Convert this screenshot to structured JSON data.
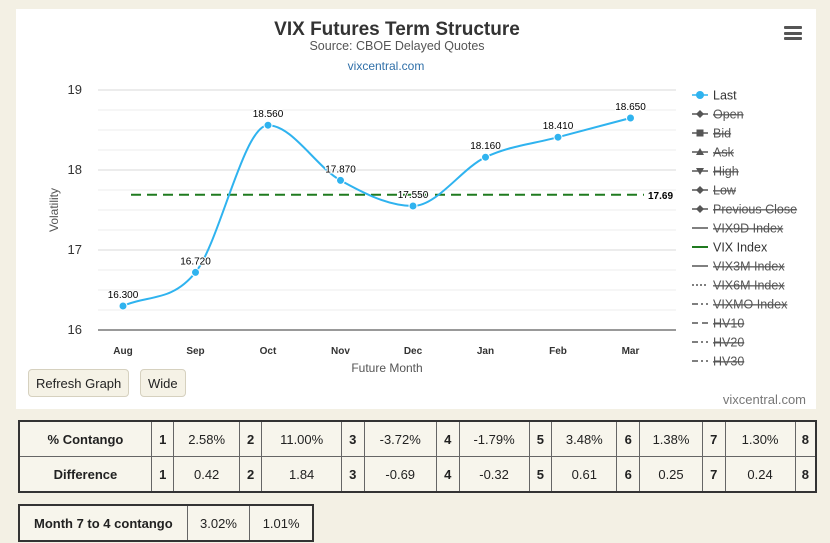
{
  "chart_data": {
    "type": "line",
    "title": "VIX Futures Term Structure",
    "subtitle": "Source: CBOE Delayed Quotes",
    "credit_link": "vixcentral.com",
    "credit_footer": "vixcentral.com",
    "xlabel": "Future Month",
    "ylabel": "Volatility",
    "categories": [
      "Aug",
      "Sep",
      "Oct",
      "Nov",
      "Dec",
      "Jan",
      "Feb",
      "Mar"
    ],
    "ylim": [
      16,
      19
    ],
    "yticks": [
      "16",
      "17",
      "18",
      "19"
    ],
    "grid": true,
    "series": [
      {
        "name": "Last",
        "values": [
          16.3,
          16.72,
          18.56,
          17.87,
          17.55,
          18.16,
          18.41,
          18.65
        ],
        "labels": [
          "16.300",
          "16.720",
          "18.560",
          "17.870",
          "17.550",
          "18.160",
          "18.410",
          "18.650"
        ],
        "color": "#2fb3ef"
      }
    ],
    "reference_line": {
      "name": "VIX Index",
      "value": 17.69,
      "label": "17.69",
      "color": "#1f7a1f"
    },
    "legend_position": "right",
    "legend": [
      {
        "label": "Last",
        "style": "dot-line",
        "disabled": false
      },
      {
        "label": "Open",
        "style": "diamond-line",
        "disabled": true
      },
      {
        "label": "Bid",
        "style": "square-line",
        "disabled": true
      },
      {
        "label": "Ask",
        "style": "triangle-line",
        "disabled": true
      },
      {
        "label": "High",
        "style": "triangle-down-line",
        "disabled": true
      },
      {
        "label": "Low",
        "style": "diamond-line",
        "disabled": true
      },
      {
        "label": "Previous Close",
        "style": "diamond-line",
        "disabled": true
      },
      {
        "label": "VIX9D Index",
        "style": "line",
        "disabled": true
      },
      {
        "label": "VIX Index",
        "style": "green-line",
        "disabled": false
      },
      {
        "label": "VIX3M Index",
        "style": "line",
        "disabled": true
      },
      {
        "label": "VIX6M Index",
        "style": "dotted",
        "disabled": true
      },
      {
        "label": "VIXMO Index",
        "style": "dash-dot",
        "disabled": true
      },
      {
        "label": "HV10",
        "style": "dashed",
        "disabled": true
      },
      {
        "label": "HV20",
        "style": "dash-dot",
        "disabled": true
      },
      {
        "label": "HV30",
        "style": "dash-dot",
        "disabled": true
      }
    ]
  },
  "buttons": {
    "refresh": "Refresh Graph",
    "wide": "Wide"
  },
  "contango_table": {
    "rows": [
      {
        "label": "% Contango",
        "cells": [
          [
            "1",
            "2.58%"
          ],
          [
            "2",
            "11.00%"
          ],
          [
            "3",
            "-3.72%"
          ],
          [
            "4",
            "-1.79%"
          ],
          [
            "5",
            "3.48%"
          ],
          [
            "6",
            "1.38%"
          ],
          [
            "7",
            "1.30%"
          ],
          [
            "8",
            ""
          ]
        ]
      },
      {
        "label": "Difference",
        "cells": [
          [
            "1",
            "0.42"
          ],
          [
            "2",
            "1.84"
          ],
          [
            "3",
            "-0.69"
          ],
          [
            "4",
            "-0.32"
          ],
          [
            "5",
            "0.61"
          ],
          [
            "6",
            "0.25"
          ],
          [
            "7",
            "0.24"
          ],
          [
            "8",
            ""
          ]
        ]
      }
    ]
  },
  "month_table": {
    "label": "Month 7 to 4 contango",
    "values": [
      "3.02%",
      "1.01%"
    ]
  }
}
